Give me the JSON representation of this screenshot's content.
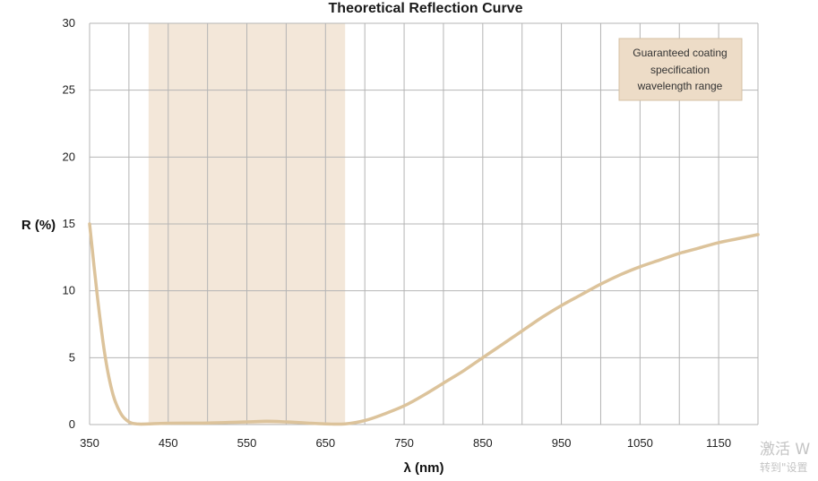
{
  "chart_data": {
    "type": "line",
    "title": "Theoretical Reflection Curve",
    "xlabel": "λ (nm)",
    "ylabel": "R (%)",
    "xlim": [
      350,
      1200
    ],
    "ylim": [
      0,
      30
    ],
    "x_ticks": [
      350,
      450,
      550,
      650,
      750,
      850,
      950,
      1050,
      1150
    ],
    "y_ticks": [
      0,
      5,
      10,
      15,
      20,
      25,
      30
    ],
    "grid": true,
    "band": {
      "label": "Guaranteed coating specification wavelength range",
      "x": [
        425,
        675
      ],
      "color": "#f3e7d9"
    },
    "legend": {
      "lines": [
        "Guaranteed coating",
        "specification",
        "wavelength range"
      ],
      "placement": "top-right"
    },
    "series": [
      {
        "color": "#dcc39b",
        "points": [
          [
            350,
            15.0
          ],
          [
            360,
            9.5
          ],
          [
            370,
            5.0
          ],
          [
            380,
            2.2
          ],
          [
            390,
            0.8
          ],
          [
            400,
            0.2
          ],
          [
            410,
            0.05
          ],
          [
            425,
            0.05
          ],
          [
            450,
            0.1
          ],
          [
            500,
            0.12
          ],
          [
            550,
            0.2
          ],
          [
            575,
            0.25
          ],
          [
            600,
            0.2
          ],
          [
            625,
            0.12
          ],
          [
            650,
            0.05
          ],
          [
            675,
            0.05
          ],
          [
            700,
            0.3
          ],
          [
            725,
            0.8
          ],
          [
            750,
            1.4
          ],
          [
            775,
            2.2
          ],
          [
            800,
            3.1
          ],
          [
            825,
            4.0
          ],
          [
            850,
            5.0
          ],
          [
            875,
            6.0
          ],
          [
            900,
            7.0
          ],
          [
            925,
            8.0
          ],
          [
            950,
            8.9
          ],
          [
            975,
            9.7
          ],
          [
            1000,
            10.5
          ],
          [
            1025,
            11.2
          ],
          [
            1050,
            11.8
          ],
          [
            1075,
            12.3
          ],
          [
            1100,
            12.8
          ],
          [
            1125,
            13.2
          ],
          [
            1150,
            13.6
          ],
          [
            1175,
            13.9
          ],
          [
            1200,
            14.2
          ]
        ]
      }
    ]
  },
  "watermark": {
    "line1": "激活 W",
    "line2": "转到\"设置"
  }
}
